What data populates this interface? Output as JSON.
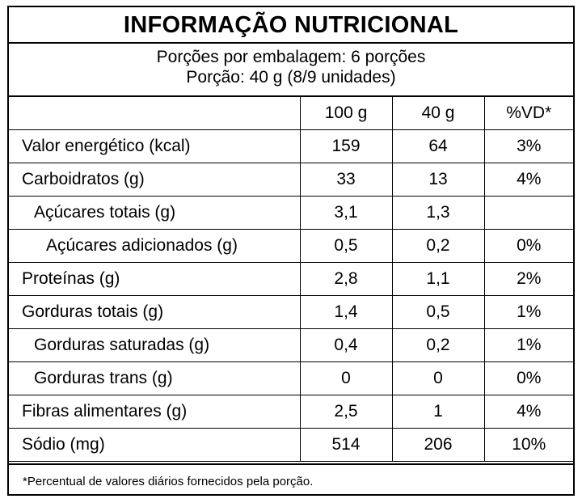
{
  "title": "INFORMAÇÃO NUTRICIONAL",
  "servings_line": "Porções por embalagem: 6 porções",
  "portion_line": "Porção: 40 g (8/9 unidades)",
  "headers": {
    "col1": "100 g",
    "col2": "40 g",
    "col3": "%VD*"
  },
  "rows": [
    {
      "name": "Valor energético (kcal)",
      "v100": "159",
      "v40": "64",
      "vd": "3%"
    },
    {
      "name": "Carboidratos (g)",
      "v100": "33",
      "v40": "13",
      "vd": "4%"
    },
    {
      "name": "Açúcares totais (g)",
      "v100": "3,1",
      "v40": "1,3",
      "vd": ""
    },
    {
      "name": "Açúcares adicionados (g)",
      "v100": "0,5",
      "v40": "0,2",
      "vd": "0%"
    },
    {
      "name": "Proteínas (g)",
      "v100": "2,8",
      "v40": "1,1",
      "vd": "2%"
    },
    {
      "name": "Gorduras totais (g)",
      "v100": "1,4",
      "v40": "0,5",
      "vd": "1%"
    },
    {
      "name": "Gorduras saturadas (g)",
      "v100": "0,4",
      "v40": "0,2",
      "vd": "1%"
    },
    {
      "name": "Gorduras trans (g)",
      "v100": "0",
      "v40": "0",
      "vd": "0%"
    },
    {
      "name": "Fibras alimentares (g)",
      "v100": "2,5",
      "v40": "1",
      "vd": "4%"
    },
    {
      "name": "Sódio (mg)",
      "v100": "514",
      "v40": "206",
      "vd": "10%"
    }
  ],
  "footnote": "*Percentual de valores diários fornecidos pela porção."
}
